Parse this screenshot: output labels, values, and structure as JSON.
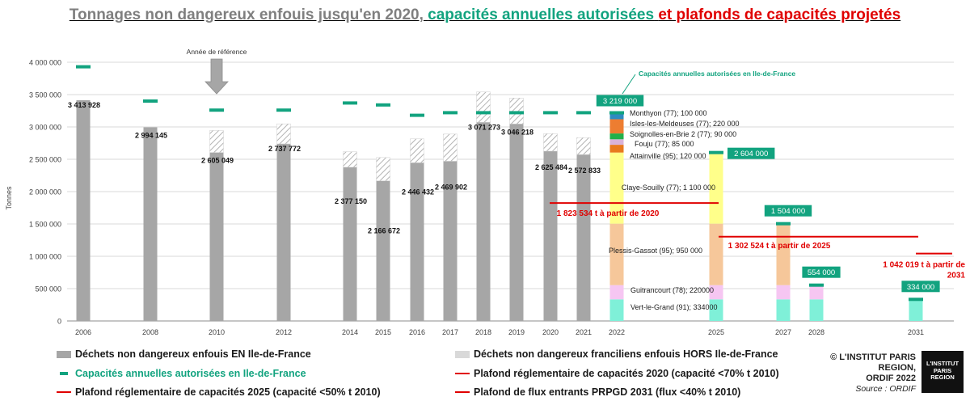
{
  "title": {
    "part1": "Tonnages non dangereux enfouis jusqu'en 2020,",
    "part2": "capacités annuelles autorisées",
    "part3": "et plafonds de capacités projetés"
  },
  "colors": {
    "bar": "#a6a6a6",
    "hors": "#d9d9d9",
    "capacity": "#12a37f",
    "plafond": "#e00000",
    "vert_le_grand": "#7ff0d8",
    "guitrancourt": "#f6c6f2",
    "plessis_gassot": "#f6c79a",
    "claye_souilly": "#ffff8a",
    "attainville": "#e87a1e",
    "fouju": "#d9b3d9",
    "soignolles": "#22b04a",
    "isles_les_meldeuses": "#ed7d31",
    "monthyon": "#2e8bc0"
  },
  "chart_data": {
    "type": "bar",
    "ylabel": "Tonnes",
    "ylim": [
      0,
      4000000
    ],
    "yticks": [
      0,
      500000,
      1000000,
      1500000,
      2000000,
      2500000,
      3000000,
      3500000,
      4000000
    ],
    "ytick_labels": [
      "0",
      "500 000",
      "1 000 000",
      "1 500 000",
      "2 000 000",
      "2 500 000",
      "3 000 000",
      "3 500 000",
      "4 000 000"
    ],
    "xtick_labels": [
      "2006",
      "2008",
      "2010",
      "2012",
      "2014",
      "2015",
      "2016",
      "2017",
      "2018",
      "2019",
      "2020",
      "2021",
      "2022",
      "2025",
      "2027",
      "2028",
      "2031"
    ],
    "historical": [
      {
        "year": 2006,
        "en_idf": 3413928,
        "label": "3 413 928",
        "hors": 0,
        "capacity": 3930000
      },
      {
        "year": 2008,
        "en_idf": 2994145,
        "label": "2 994 145",
        "hors": 0,
        "capacity": 3400000
      },
      {
        "year": 2010,
        "en_idf": 2605049,
        "label": "2 605 049",
        "hors": 340000,
        "capacity": 3260000
      },
      {
        "year": 2012,
        "en_idf": 2737772,
        "label": "2 737 772",
        "hors": 310000,
        "capacity": 3260000
      },
      {
        "year": 2014,
        "en_idf": 2377150,
        "label": "2 377 150",
        "hors": 240000,
        "capacity": 3370000
      },
      {
        "year": 2015,
        "en_idf": 2166672,
        "label": "2 166 672",
        "hors": 360000,
        "capacity": 3340000
      },
      {
        "year": 2016,
        "en_idf": 2446432,
        "label": "2 446 432",
        "hors": 370000,
        "capacity": 3180000
      },
      {
        "year": 2017,
        "en_idf": 2469902,
        "label": "2 469 902",
        "hors": 420000,
        "capacity": 3220000
      },
      {
        "year": 2018,
        "en_idf": 3071273,
        "label": "3 071 273",
        "hors": 470000,
        "capacity": 3220000
      },
      {
        "year": 2019,
        "en_idf": 3046218,
        "label": "3 046 218",
        "hors": 400000,
        "capacity": 3220000
      },
      {
        "year": 2020,
        "en_idf": 2625484,
        "label": "2 625 484",
        "hors": 270000,
        "capacity": 3220000
      },
      {
        "year": 2021,
        "en_idf": 2572833,
        "label": "2 572 833",
        "hors": 260000,
        "capacity": 3220000
      }
    ],
    "stack_order": [
      "vert_le_grand",
      "guitrancourt",
      "plessis_gassot",
      "claye_souilly",
      "attainville",
      "fouju",
      "soignolles",
      "isles_les_meldeuses",
      "monthyon"
    ],
    "projected": [
      {
        "year": "2022",
        "total": 3219000,
        "total_label": "3 219 000",
        "segments": {
          "vert_le_grand": 334000,
          "guitrancourt": 220000,
          "plessis_gassot": 950000,
          "claye_souilly": 1100000,
          "attainville": 120000,
          "fouju": 85000,
          "soignolles": 90000,
          "isles_les_meldeuses": 220000,
          "monthyon": 100000
        }
      },
      {
        "year": "2025",
        "total": 2604000,
        "total_label": "2 604 000",
        "segments": {
          "vert_le_grand": 334000,
          "guitrancourt": 220000,
          "plessis_gassot": 950000,
          "claye_souilly": 1100000
        }
      },
      {
        "year": "2027",
        "total": 1504000,
        "total_label": "1 504 000",
        "segments": {
          "vert_le_grand": 334000,
          "guitrancourt": 220000,
          "plessis_gassot": 950000
        }
      },
      {
        "year": "2028",
        "total": 554000,
        "total_label": "554 000",
        "segments": {
          "vert_le_grand": 334000,
          "guitrancourt": 220000
        }
      },
      {
        "year": "2031",
        "total": 334000,
        "total_label": "334 000",
        "segments": {
          "vert_le_grand": 334000
        }
      }
    ],
    "site_labels": [
      {
        "key": "monthyon",
        "text": "Monthyon (77); 100 000"
      },
      {
        "key": "isles_les_meldeuses",
        "text": "Isles-les-Meldeuses (77); 220 000"
      },
      {
        "key": "soignolles",
        "text": "Soignolles-en-Brie 2  (77); 90 000"
      },
      {
        "key": "fouju",
        "text": "Fouju (77); 85 000"
      },
      {
        "key": "attainville",
        "text": "Attainville (95); 120 000"
      },
      {
        "key": "claye_souilly",
        "text": "Claye-Souilly (77); 1 100 000"
      },
      {
        "key": "plessis_gassot",
        "text": "Plessis-Gassot (95); 950 000"
      },
      {
        "key": "guitrancourt",
        "text": "Guitrancourt (78); 220000"
      },
      {
        "key": "vert_le_grand",
        "text": "Vert-le-Grand (91); 334000"
      }
    ],
    "plafonds": [
      {
        "value": 1823534,
        "label": "1 823 534 t à partir de 2020",
        "from": "2022",
        "to": "2025"
      },
      {
        "value": 1302524,
        "label": "1 302 524 t à partir de 2025",
        "from": "2025",
        "to": "2031"
      },
      {
        "value": 1042019,
        "label_line1": "1 042 019 t à partir de",
        "label_line2": "2031",
        "from": "2031",
        "to": "2031"
      }
    ],
    "annotations": {
      "reference_year": "Année de référence",
      "capacity_callout": "Capacités annuelles autorisées en Ile-de-France"
    }
  },
  "legend": {
    "en_idf": "Déchets non dangereux enfouis EN Ile-de-France",
    "hors_idf": "Déchets non dangereux franciliens enfouis HORS Ile-de-France",
    "capacity": "Capacités annuelles autorisées en Ile-de-France",
    "plafond_2020": "Plafond réglementaire de capacités 2020 (capacité <70% t 2010)",
    "plafond_2025": "Plafond réglementaire de capacités 2025 (capacité <50% t 2010)",
    "plafond_2031": "Plafond de flux entrants PRPGD 2031 (flux <40% t 2010)"
  },
  "brand": {
    "copyright": "© L'INSTITUT PARIS REGION,",
    "ordif": "ORDIF 2022",
    "source": "Source : ORDIF",
    "logo_line1": "L'INSTITUT",
    "logo_line2": "PARIS",
    "logo_line3": "REGION"
  }
}
